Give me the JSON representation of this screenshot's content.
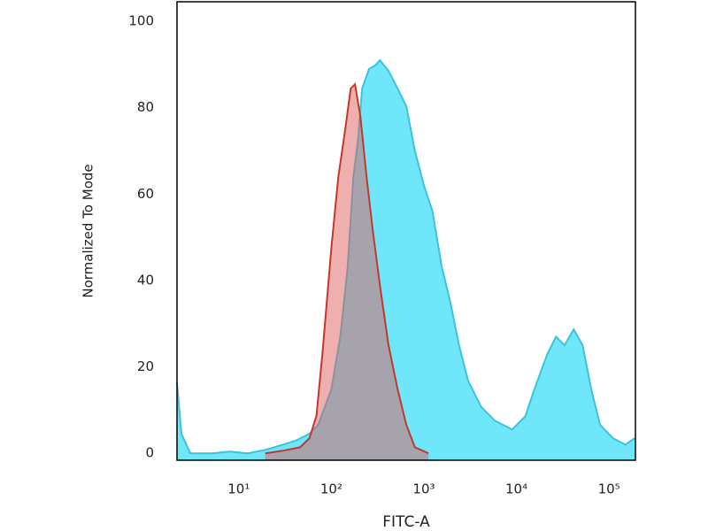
{
  "chart_data": {
    "type": "area",
    "x_label": "FITC-A",
    "y_label": "Normalized To Mode",
    "xscale": "log",
    "xlim": [
      2.15,
      193000
    ],
    "ylim": [
      -1.6,
      104.5
    ],
    "xticks": [
      {
        "value": 10,
        "label": "10¹"
      },
      {
        "value": 100,
        "label": "10²"
      },
      {
        "value": 1000,
        "label": "10³"
      },
      {
        "value": 10000,
        "label": "10⁴"
      },
      {
        "value": 100000,
        "label": "10⁵"
      }
    ],
    "yticks": [
      0,
      20,
      40,
      60,
      80,
      100
    ],
    "series": [
      {
        "color": "#3bc3dd",
        "fill": "#5fe3f8",
        "x": [
          2.15,
          2.4,
          3,
          5.2,
          8,
          12.5,
          19.3,
          30,
          41,
          58,
          72,
          100,
          125,
          150,
          173,
          193,
          215,
          256,
          300,
          334,
          415,
          520,
          645,
          800,
          1000,
          1240,
          1550,
          1930,
          2400,
          3000,
          4170,
          5800,
          8960,
          12500,
          15600,
          21600,
          26800,
          33000,
          41600,
          51800,
          64400,
          80000,
          110000,
          150000,
          190000
        ],
        "values": [
          16.4,
          4.5,
          0,
          0,
          0.4,
          0,
          0.8,
          2,
          2.9,
          4.5,
          6.6,
          14.8,
          27,
          43,
          64,
          72,
          84.4,
          89,
          89.8,
          91,
          88.5,
          84.4,
          80.3,
          70,
          62,
          56,
          43.4,
          35,
          25,
          16.8,
          10.7,
          7.6,
          5.5,
          8.6,
          14.8,
          23,
          27,
          25,
          28.7,
          25,
          14.8,
          6.6,
          3.5,
          2,
          3.5
        ]
      },
      {
        "color": "#c0392b",
        "fill": "#e06060",
        "x": [
          19.3,
          30,
          46,
          58,
          69,
          80,
          100,
          119,
          139,
          162,
          180,
          206,
          240,
          280,
          334,
          415,
          520,
          645,
          800,
          1120
        ],
        "values": [
          0,
          0.6,
          1.4,
          3.5,
          8.6,
          23,
          47.5,
          64,
          74,
          84.4,
          85.4,
          78,
          64,
          51.6,
          39,
          25,
          14.8,
          6.6,
          1.4,
          0
        ]
      }
    ]
  }
}
